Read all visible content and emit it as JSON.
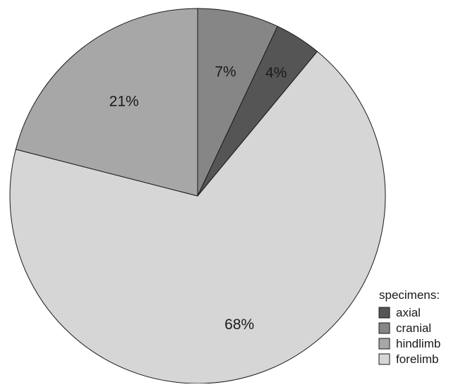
{
  "chart_data": {
    "type": "pie",
    "title": "",
    "categories": [
      "cranial",
      "axial",
      "forelimb",
      "hindlimb"
    ],
    "values": [
      7,
      4,
      68,
      21
    ],
    "value_labels": [
      "7%",
      "4%",
      "68%",
      "21%"
    ],
    "colors": {
      "axial": "#555555",
      "cranial": "#868686",
      "hindlimb": "#a7a7a7",
      "forelimb": "#d6d6d6"
    },
    "start": "top",
    "direction": "clockwise",
    "legend": {
      "title": "specimens:",
      "position": "bottom-right",
      "entries": [
        "axial",
        "cranial",
        "hindlimb",
        "forelimb"
      ]
    }
  }
}
